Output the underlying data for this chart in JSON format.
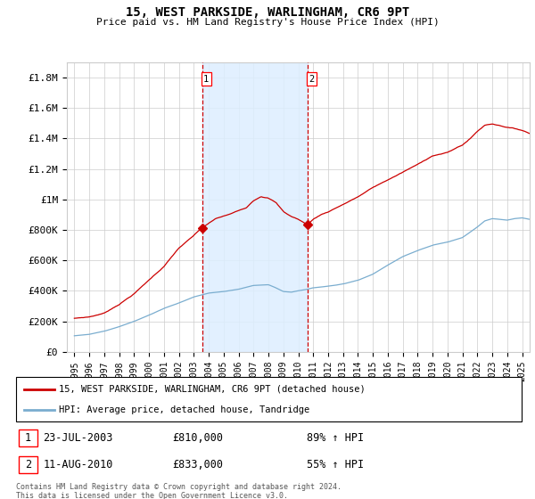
{
  "title": "15, WEST PARKSIDE, WARLINGHAM, CR6 9PT",
  "subtitle": "Price paid vs. HM Land Registry's House Price Index (HPI)",
  "ylabel_ticks": [
    "£0",
    "£200K",
    "£400K",
    "£600K",
    "£800K",
    "£1M",
    "£1.2M",
    "£1.4M",
    "£1.6M",
    "£1.8M"
  ],
  "ylabel_values": [
    0,
    200000,
    400000,
    600000,
    800000,
    1000000,
    1200000,
    1400000,
    1600000,
    1800000
  ],
  "ylim": [
    0,
    1900000
  ],
  "xlim_start": 1994.5,
  "xlim_end": 2025.5,
  "sale1_x": 2003.55,
  "sale1_y": 810000,
  "sale2_x": 2010.61,
  "sale2_y": 833000,
  "legend_line1": "15, WEST PARKSIDE, WARLINGHAM, CR6 9PT (detached house)",
  "legend_line2": "HPI: Average price, detached house, Tandridge",
  "footer": "Contains HM Land Registry data © Crown copyright and database right 2024.\nThis data is licensed under the Open Government Licence v3.0.",
  "red_color": "#cc0000",
  "blue_color": "#7aadcf",
  "shade_color": "#ddeeff",
  "grid_color": "#cccccc"
}
